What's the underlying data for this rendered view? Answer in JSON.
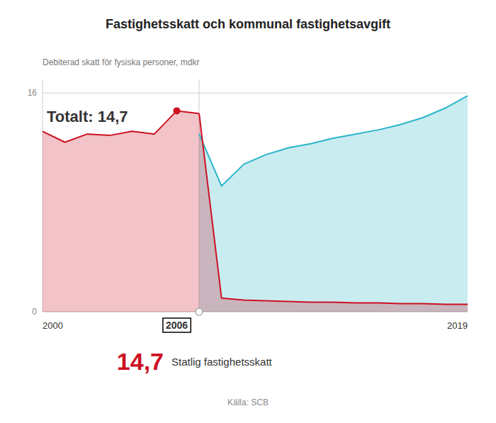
{
  "chart_data": {
    "type": "area",
    "title": "Fastighetsskatt och kommunal fastighetsavgift",
    "subtitle": "Debiterad skatt för fysiska personer, mdkr",
    "series": [
      {
        "name": "Statlig fastighetsskatt",
        "color": "#cc1122",
        "x": [
          2000,
          2001,
          2002,
          2003,
          2004,
          2005,
          2006,
          2007
        ],
        "values": [
          13.2,
          12.4,
          13.0,
          12.9,
          13.2,
          13.0,
          14.7,
          14.5
        ]
      },
      {
        "color": "#cc1122",
        "x": [
          2007,
          2008,
          2009,
          2010,
          2011,
          2012,
          2013,
          2014,
          2015,
          2016,
          2017,
          2018,
          2019
        ],
        "values": [
          14.5,
          1.0,
          0.85,
          0.8,
          0.75,
          0.7,
          0.7,
          0.65,
          0.65,
          0.6,
          0.6,
          0.55,
          0.55
        ]
      },
      {
        "color": "#29b5c8",
        "x": [
          2007,
          2008,
          2009,
          2010,
          2011,
          2012,
          2013,
          2014,
          2015,
          2016,
          2017,
          2018,
          2019
        ],
        "values": [
          13.0,
          9.2,
          10.8,
          11.5,
          12.0,
          12.3,
          12.7,
          13.0,
          13.3,
          13.7,
          14.2,
          14.9,
          15.8
        ]
      }
    ],
    "highlight": {
      "x": 2006,
      "value": 14.7,
      "label": "14,7"
    },
    "split_year": 2007,
    "annotations": [
      "Totalt: 14,7"
    ],
    "source": "Källa: SCB",
    "xlim": [
      2000,
      2019
    ],
    "xticks": [
      2000,
      2006,
      2019
    ],
    "ylim": [
      0,
      17
    ],
    "yticks": [
      0,
      16
    ],
    "grid": true
  }
}
